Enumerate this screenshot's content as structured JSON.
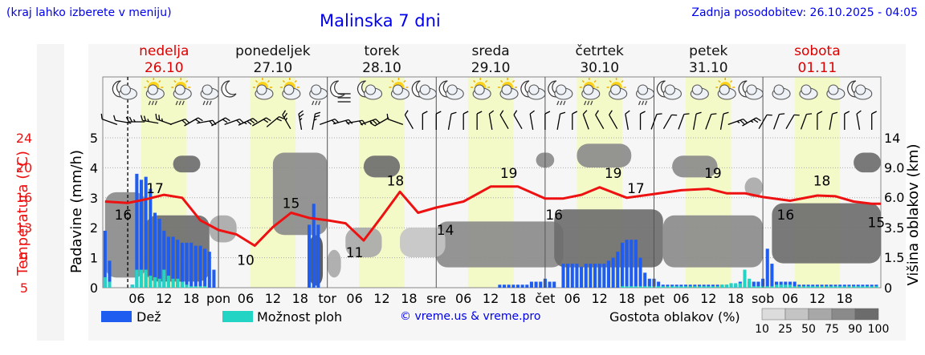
{
  "header": {
    "note": "(kraj lahko izberete v meniju)",
    "title": "Malinska 7 dni",
    "updated": "Zadnja posodobitev: 26.10.2025 - 04:05",
    "credit": "© vreme.us & vreme.pro"
  },
  "colors": {
    "rain": "#1f5cf0",
    "showers": "#22d4c4",
    "temperature": "#ee1111",
    "day_shade": "#f4f9c8",
    "weekend_text": "#dd0000",
    "weekday_text": "#111111"
  },
  "days": [
    {
      "name": "nedelja",
      "date": "26.10",
      "weekend": true
    },
    {
      "name": "ponedeljek",
      "date": "27.10",
      "weekend": false
    },
    {
      "name": "torek",
      "date": "28.10",
      "weekend": false
    },
    {
      "name": "sreda",
      "date": "29.10",
      "weekend": false
    },
    {
      "name": "četrtek",
      "date": "30.10",
      "weekend": false
    },
    {
      "name": "petek",
      "date": "31.10",
      "weekend": false
    },
    {
      "name": "sobota",
      "date": "01.11",
      "weekend": true
    }
  ],
  "legend": {
    "rain": "Dež",
    "showers": "Možnost ploh",
    "cloud_title": "Gostota oblakov (%)",
    "cloud_levels": [
      "10",
      "25",
      "50",
      "75",
      "90",
      "100"
    ],
    "cloud_colors": [
      "#dcdcdc",
      "#c4c4c4",
      "#a8a8a8",
      "#8a8a8a",
      "#6c6c6c",
      "#4e4e4e"
    ]
  },
  "icons": [
    "moon-cloud-icon",
    "sun-cloud-rain-icon",
    "sun-cloud-rain-icon",
    "cloud-rain-icon",
    "moon-icon",
    "sun-cloud-icon",
    "sun-cloud-icon",
    "cloud-rain-icon",
    "fog-icon",
    "moon-cloud-icon",
    "sun-cloud-icon",
    "moon-cloud-icon",
    "moon-cloud-icon",
    "sun-cloud-icon",
    "sun-cloud-icon",
    "moon-cloud-icon",
    "moon-cloud-rain-icon",
    "sun-cloud-rain-icon",
    "sun-cloud-icon",
    "cloud-rain-icon",
    "moon-cloud-icon",
    "cloud-icon",
    "sun-cloud-icon",
    "moon-cloud-icon",
    "cloud-icon",
    "cloud-icon",
    "cloud-icon",
    "moon-cloud-icon"
  ],
  "chart_data": {
    "type": "line",
    "title": "Malinska 7 dni",
    "x_unit": "hours since 26.10 00:00",
    "x_range": [
      -1.5,
      170
    ],
    "x_tick_labels": [
      "06",
      "12",
      "18",
      "pon",
      "06",
      "12",
      "18",
      "tor",
      "06",
      "12",
      "18",
      "sre",
      "06",
      "12",
      "18",
      "čet",
      "06",
      "12",
      "18",
      "pet",
      "06",
      "12",
      "18",
      "sob",
      "06",
      "12",
      "18"
    ],
    "current_time_hour": 4,
    "axes": {
      "temperature": {
        "label": "Temperatura (°C)",
        "ticks": [
          "5",
          "9",
          "13",
          "16",
          "20",
          "24"
        ]
      },
      "precipitation": {
        "label": "Padavine (mm/h)",
        "range": [
          0,
          5
        ],
        "ticks": [
          "0",
          "1",
          "2",
          "3",
          "4",
          "5"
        ]
      },
      "cloud_height": {
        "label": "Višina oblakov (km)",
        "range": [
          0,
          14
        ],
        "ticks": [
          "0",
          "1.5",
          "3.5",
          "6.0",
          "9.0",
          "14"
        ]
      }
    },
    "series": [
      {
        "name": "Temperatura (°C)",
        "x": [
          -1,
          4,
          8,
          12,
          16,
          20,
          24,
          28,
          32,
          36,
          40,
          44,
          48,
          52,
          56,
          60,
          64,
          68,
          72,
          78,
          84,
          90,
          96,
          100,
          104,
          108,
          114,
          120,
          126,
          132,
          136,
          140,
          144,
          150,
          156,
          160,
          164,
          168,
          170
        ],
        "values": [
          16.5,
          16.3,
          16.8,
          17.4,
          17,
          14,
          12.7,
          12.1,
          10.6,
          13.1,
          15,
          14.3,
          14,
          13.6,
          11.3,
          14.5,
          17.8,
          15,
          15.7,
          16.5,
          18.5,
          18.5,
          16.9,
          16.9,
          17.4,
          18.4,
          17,
          17.5,
          18,
          18.2,
          17.6,
          17.6,
          17.1,
          16.6,
          17.3,
          17.2,
          16.5,
          16.2,
          16.2
        ],
        "labels": [
          {
            "x": 3,
            "value": "16"
          },
          {
            "x": 10,
            "value": "17"
          },
          {
            "x": 30,
            "value": "10"
          },
          {
            "x": 40,
            "value": "15"
          },
          {
            "x": 54,
            "value": "11"
          },
          {
            "x": 63,
            "value": "18"
          },
          {
            "x": 74,
            "value": "14"
          },
          {
            "x": 88,
            "value": "19"
          },
          {
            "x": 98,
            "value": "16"
          },
          {
            "x": 111,
            "value": "19"
          },
          {
            "x": 116,
            "value": "17"
          },
          {
            "x": 133,
            "value": "19"
          },
          {
            "x": 149,
            "value": "16"
          },
          {
            "x": 157,
            "value": "18"
          },
          {
            "x": 169,
            "value": "15"
          }
        ]
      },
      {
        "name": "Dež (mm/h)",
        "x": [
          -1,
          0,
          5,
          6,
          7,
          8,
          9,
          10,
          11,
          12,
          13,
          14,
          15,
          16,
          17,
          18,
          19,
          20,
          21,
          22,
          23,
          44,
          45,
          46,
          86,
          87,
          88,
          89,
          90,
          91,
          92,
          93,
          94,
          95,
          96,
          97,
          98,
          100,
          101,
          102,
          103,
          104,
          105,
          106,
          107,
          108,
          109,
          110,
          111,
          112,
          113,
          114,
          115,
          116,
          117,
          118,
          119,
          120,
          121,
          122,
          123,
          124,
          125,
          126,
          127,
          128,
          129,
          130,
          131,
          132,
          133,
          134,
          135,
          136,
          137,
          138,
          139,
          140,
          141,
          142,
          143,
          144,
          145,
          146,
          147,
          148,
          149,
          150,
          151,
          152,
          153,
          154,
          155,
          156,
          157,
          158,
          159,
          160,
          161,
          162,
          163,
          164,
          165,
          166,
          167,
          168,
          169
        ],
        "values": [
          1.9,
          0.9,
          0.1,
          3.8,
          3.6,
          3.7,
          3.3,
          2.5,
          2.3,
          1.9,
          1.7,
          1.7,
          1.6,
          1.5,
          1.5,
          1.5,
          1.4,
          1.4,
          1.3,
          1.2,
          0.6,
          2.1,
          2.8,
          2.1,
          0.1,
          0.1,
          0.1,
          0.1,
          0.1,
          0.1,
          0.1,
          0.2,
          0.2,
          0.2,
          0.3,
          0.2,
          0.2,
          0.8,
          0.8,
          0.8,
          0.8,
          0.7,
          0.8,
          0.8,
          0.8,
          0.8,
          0.8,
          0.9,
          1,
          1.2,
          1.5,
          1.6,
          1.6,
          1.6,
          1,
          0.5,
          0.3,
          0.3,
          0.2,
          0.1,
          0.1,
          0.1,
          0.1,
          0.1,
          0.1,
          0.1,
          0.1,
          0.1,
          0.1,
          0.1,
          0.1,
          0.1,
          0.1,
          0.1,
          0.1,
          0.1,
          0.2,
          0.2,
          0.2,
          0.2,
          0.2,
          0.3,
          1.3,
          0.8,
          0.2,
          0.2,
          0.2,
          0.2,
          0.2,
          0.1,
          0.1,
          0.1,
          0.1,
          0.1,
          0.1,
          0.1,
          0.1,
          0.1,
          0.1,
          0.1,
          0.1,
          0.1,
          0.1,
          0.1,
          0.1,
          0.1,
          0.1
        ]
      },
      {
        "name": "Možnost ploh (mm/h)",
        "x": [
          -1,
          0,
          5,
          6,
          7,
          8,
          9,
          10,
          11,
          12,
          13,
          14,
          15,
          16,
          17,
          18,
          19,
          20,
          21,
          113,
          114,
          115,
          116,
          117,
          118,
          119,
          120,
          121,
          122,
          123,
          124,
          125,
          126,
          127,
          128,
          129,
          130,
          131,
          132,
          133,
          134,
          135,
          136,
          137,
          138,
          139,
          140,
          141,
          142,
          143,
          144,
          145,
          146,
          147,
          148,
          149,
          150,
          151,
          152,
          153,
          154,
          155,
          156,
          157,
          158,
          159,
          160,
          161,
          162,
          163,
          164,
          165,
          166,
          167,
          168,
          169
        ],
        "values": [
          0.35,
          0.2,
          0.1,
          0.6,
          0.6,
          0.6,
          0.4,
          0.35,
          0.3,
          0.6,
          0.4,
          0.3,
          0.3,
          0.2,
          0.1,
          0.05,
          0.05,
          0.05,
          0.05,
          0.05,
          0.05,
          0.05,
          0.05,
          0.05,
          0.05,
          0.05,
          0.05,
          0.05,
          0.05,
          0.05,
          0.05,
          0.05,
          0.05,
          0.05,
          0.05,
          0.05,
          0.05,
          0.05,
          0.05,
          0.05,
          0.05,
          0.1,
          0.1,
          0.15,
          0.15,
          0.15,
          0.6,
          0.3,
          0.05,
          0.05,
          0.05,
          0.05,
          0.05,
          0.1,
          0.1,
          0.1,
          0.1,
          0.05,
          0.05,
          0.05,
          0.05,
          0.05,
          0.05,
          0.05,
          0.05,
          0.05,
          0.05,
          0.05,
          0.05,
          0.05,
          0.05,
          0.05,
          0.05,
          0.05,
          0.05,
          0.05
        ]
      }
    ],
    "wind": [
      {
        "x": 0,
        "dir": 110,
        "speed": 10
      },
      {
        "x": 3,
        "dir": 100,
        "speed": 10
      },
      {
        "x": 6,
        "dir": 90,
        "speed": 15
      },
      {
        "x": 9,
        "dir": 100,
        "speed": 15
      },
      {
        "x": 12,
        "dir": 110,
        "speed": 15
      },
      {
        "x": 15,
        "dir": 250,
        "speed": 20
      },
      {
        "x": 18,
        "dir": 240,
        "speed": 20
      },
      {
        "x": 21,
        "dir": 260,
        "speed": 20
      },
      {
        "x": 24,
        "dir": 240,
        "speed": 20
      },
      {
        "x": 27,
        "dir": 250,
        "speed": 20
      },
      {
        "x": 30,
        "dir": 245,
        "speed": 25
      },
      {
        "x": 33,
        "dir": 240,
        "speed": 20
      },
      {
        "x": 36,
        "dir": 230,
        "speed": 20
      },
      {
        "x": 39,
        "dir": 150,
        "speed": 15
      },
      {
        "x": 42,
        "dir": 170,
        "speed": 15
      },
      {
        "x": 45,
        "dir": 190,
        "speed": 15
      },
      {
        "x": 48,
        "dir": 250,
        "speed": 20
      },
      {
        "x": 51,
        "dir": 255,
        "speed": 20
      },
      {
        "x": 54,
        "dir": 260,
        "speed": 20
      },
      {
        "x": 57,
        "dir": 250,
        "speed": 15
      },
      {
        "x": 60,
        "dir": 60,
        "speed": 10
      },
      {
        "x": 63,
        "dir": 110,
        "speed": 10
      },
      {
        "x": 66,
        "dir": 150,
        "speed": 10
      },
      {
        "x": 69,
        "dir": 180,
        "speed": 10
      },
      {
        "x": 72,
        "dir": 180,
        "speed": 10
      },
      {
        "x": 75,
        "dir": 190,
        "speed": 10
      },
      {
        "x": 78,
        "dir": 180,
        "speed": 10
      },
      {
        "x": 81,
        "dir": 180,
        "speed": 10
      },
      {
        "x": 84,
        "dir": 170,
        "speed": 10
      },
      {
        "x": 87,
        "dir": 150,
        "speed": 10
      },
      {
        "x": 90,
        "dir": 150,
        "speed": 10
      },
      {
        "x": 93,
        "dir": 170,
        "speed": 10
      },
      {
        "x": 96,
        "dir": 180,
        "speed": 10
      },
      {
        "x": 99,
        "dir": 190,
        "speed": 10
      },
      {
        "x": 102,
        "dir": 180,
        "speed": 10
      },
      {
        "x": 105,
        "dir": 160,
        "speed": 10
      },
      {
        "x": 108,
        "dir": 150,
        "speed": 10
      },
      {
        "x": 111,
        "dir": 150,
        "speed": 10
      },
      {
        "x": 114,
        "dir": 170,
        "speed": 10
      },
      {
        "x": 117,
        "dir": 180,
        "speed": 10
      },
      {
        "x": 120,
        "dir": 200,
        "speed": 10
      },
      {
        "x": 123,
        "dir": 210,
        "speed": 10
      },
      {
        "x": 126,
        "dir": 200,
        "speed": 10
      },
      {
        "x": 129,
        "dir": 190,
        "speed": 10
      },
      {
        "x": 132,
        "dir": 200,
        "speed": 10
      },
      {
        "x": 135,
        "dir": 190,
        "speed": 10
      },
      {
        "x": 138,
        "dir": 250,
        "speed": 15
      },
      {
        "x": 141,
        "dir": 240,
        "speed": 15
      },
      {
        "x": 144,
        "dir": 210,
        "speed": 10
      },
      {
        "x": 147,
        "dir": 200,
        "speed": 10
      },
      {
        "x": 150,
        "dir": 210,
        "speed": 10
      },
      {
        "x": 153,
        "dir": 200,
        "speed": 10
      },
      {
        "x": 156,
        "dir": 180,
        "speed": 10
      },
      {
        "x": 159,
        "dir": 190,
        "speed": 10
      },
      {
        "x": 162,
        "dir": 180,
        "speed": 10
      },
      {
        "x": 165,
        "dir": 170,
        "speed": 10
      },
      {
        "x": 168,
        "dir": 180,
        "speed": 10
      }
    ],
    "cloud_blobs": [
      {
        "x0": -1,
        "x1": 8,
        "h0": 0.5,
        "h1": 6.5,
        "density": 3
      },
      {
        "x0": 8,
        "x1": 22,
        "h0": 0.3,
        "h1": 4.5,
        "density": 4
      },
      {
        "x0": 14,
        "x1": 20,
        "h0": 8.5,
        "h1": 11,
        "density": 4
      },
      {
        "x0": 22,
        "x1": 28,
        "h0": 2.5,
        "h1": 4.5,
        "density": 2
      },
      {
        "x0": 36,
        "x1": 48,
        "h0": 3,
        "h1": 11.5,
        "density": 3
      },
      {
        "x0": 44,
        "x1": 47,
        "h0": 0.1,
        "h1": 3,
        "density": 5
      },
      {
        "x0": 48,
        "x1": 51,
        "h0": 0.5,
        "h1": 2,
        "density": 2
      },
      {
        "x0": 56,
        "x1": 64,
        "h0": 8,
        "h1": 11,
        "density": 4
      },
      {
        "x0": 52,
        "x1": 60,
        "h0": 1.5,
        "h1": 3.5,
        "density": 2
      },
      {
        "x0": 72,
        "x1": 100,
        "h0": 1,
        "h1": 4,
        "density": 3
      },
      {
        "x0": 64,
        "x1": 74,
        "h0": 1.5,
        "h1": 3.5,
        "density": 1
      },
      {
        "x0": 94,
        "x1": 98,
        "h0": 9,
        "h1": 11.5,
        "density": 3
      },
      {
        "x0": 98,
        "x1": 122,
        "h0": 1,
        "h1": 5,
        "density": 4
      },
      {
        "x0": 103,
        "x1": 115,
        "h0": 9,
        "h1": 13,
        "density": 3
      },
      {
        "x0": 122,
        "x1": 144,
        "h0": 1,
        "h1": 4.5,
        "density": 3
      },
      {
        "x0": 124,
        "x1": 134,
        "h0": 8,
        "h1": 11,
        "density": 3
      },
      {
        "x0": 140,
        "x1": 144,
        "h0": 6,
        "h1": 8,
        "density": 2
      },
      {
        "x0": 146,
        "x1": 170,
        "h0": 1.2,
        "h1": 5.5,
        "density": 4
      },
      {
        "x0": 164,
        "x1": 170,
        "h0": 8.5,
        "h1": 11.5,
        "density": 4
      }
    ]
  }
}
